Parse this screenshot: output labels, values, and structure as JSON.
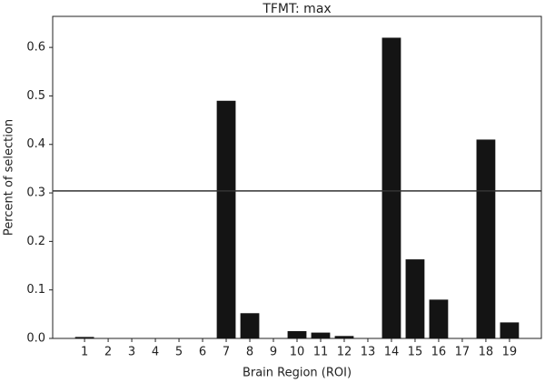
{
  "chart_data": {
    "type": "bar",
    "title": "TFMT: max",
    "x_label": "Brain Region (ROI)",
    "y_label": "Percent of selection",
    "categories": [
      "1",
      "2",
      "3",
      "4",
      "5",
      "6",
      "7",
      "8",
      "9",
      "10",
      "11",
      "12",
      "13",
      "14",
      "15",
      "16",
      "17",
      "18",
      "19"
    ],
    "values": [
      0.003,
      0,
      0,
      0,
      0,
      0,
      0.49,
      0.052,
      0,
      0.015,
      0.012,
      0.005,
      0,
      0.62,
      0.163,
      0.08,
      0,
      0.41,
      0.033
    ],
    "color": "#141414",
    "reference_line": 0.304,
    "ylim": [
      0,
      0.664
    ],
    "yticks": [
      {
        "value": 0,
        "label": "0.0"
      },
      0.1,
      0.2,
      0.3,
      0.4,
      0.5,
      0.6
    ]
  }
}
